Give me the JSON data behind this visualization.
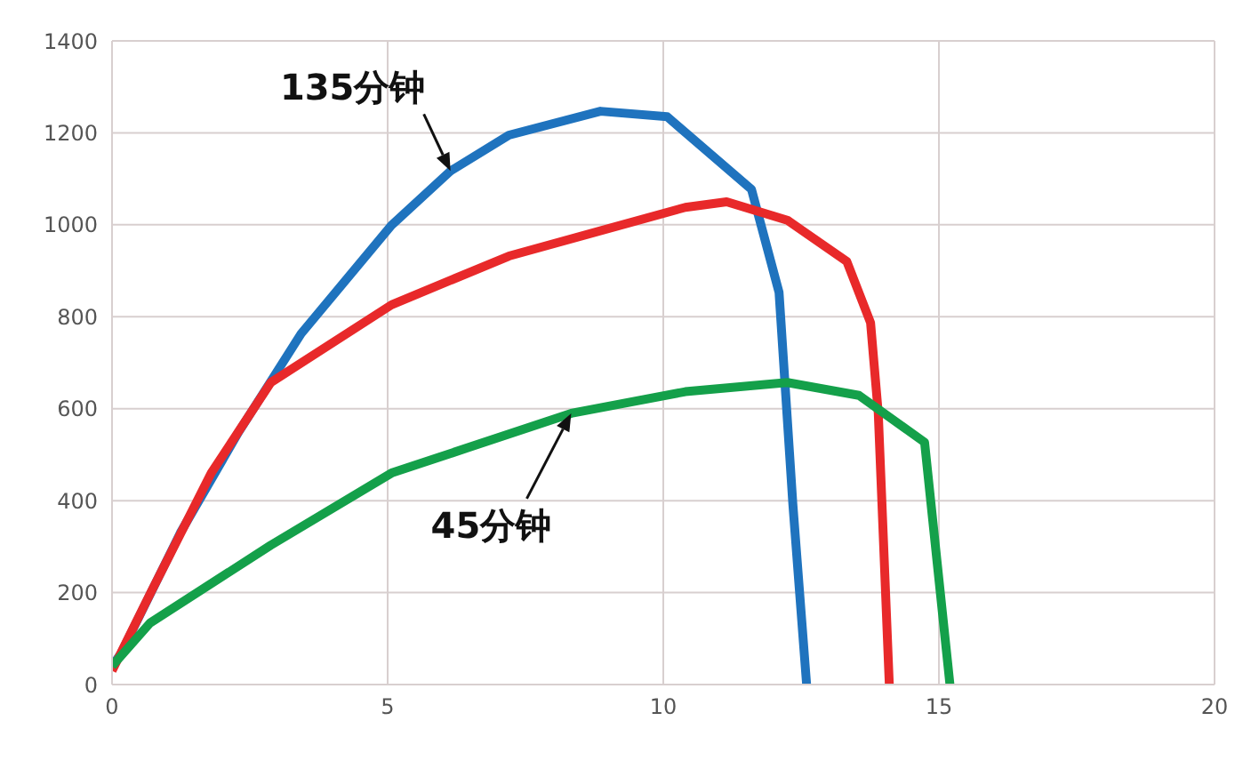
{
  "chart_data": {
    "type": "line",
    "xlim": [
      0,
      20
    ],
    "xticks": [
      0,
      5,
      10,
      15,
      20
    ],
    "ylim": [
      0,
      1400
    ],
    "yticks": [
      0,
      200,
      400,
      600,
      800,
      1000,
      1200,
      1400
    ],
    "grid": true,
    "marker": "none",
    "line_style": "solid",
    "series": [
      {
        "color": "#1f73be",
        "x": [
          0,
          0.16,
          1.24,
          2.3,
          3.43,
          5.07,
          6.14,
          7.2,
          8.86,
          10.07,
          11.6,
          12.1,
          12.35,
          12.6
        ],
        "values": [
          40,
          67,
          330,
          550,
          763,
          999,
          1117,
          1195,
          1247,
          1235,
          1077,
          853,
          393,
          0
        ]
      },
      {
        "color": "#e8292a",
        "x": [
          0,
          0.69,
          1.8,
          2.88,
          5.07,
          7.2,
          10.4,
          11.15,
          12.25,
          13.33,
          13.76,
          13.9,
          14.1
        ],
        "values": [
          30,
          197,
          460,
          657,
          826,
          932,
          1038,
          1050,
          1010,
          920,
          787,
          590,
          0
        ]
      },
      {
        "color": "#14a04a",
        "x": [
          0,
          0.69,
          2.88,
          5.07,
          8.33,
          10.4,
          12.25,
          13.55,
          14.74,
          14.97,
          15.2
        ],
        "values": [
          40,
          134,
          303,
          460,
          590,
          637,
          657,
          629,
          527,
          263,
          0
        ]
      }
    ],
    "annotations": [
      {
        "text": "135分钟",
        "x": 6.14,
        "y": 1117
      },
      {
        "text": "45分钟",
        "x": 8.33,
        "y": 590
      }
    ]
  }
}
